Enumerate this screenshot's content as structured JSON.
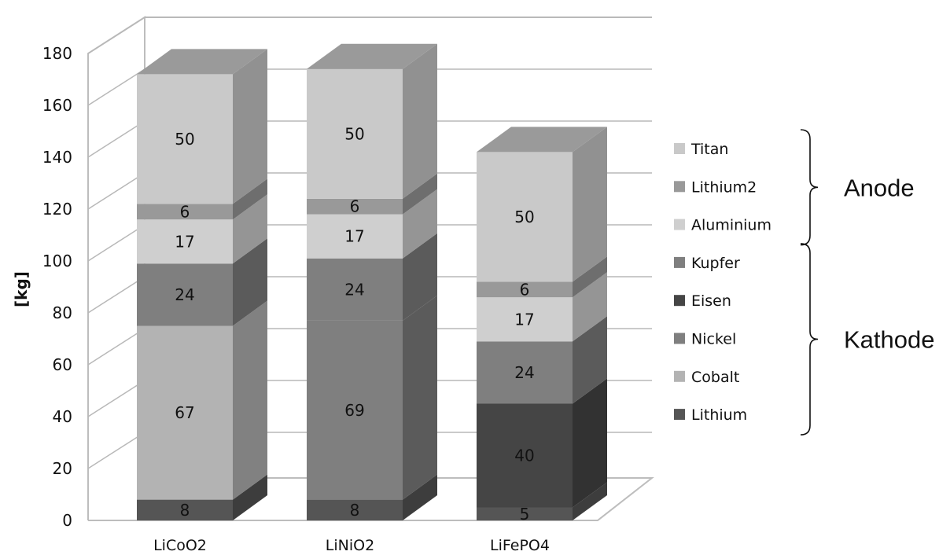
{
  "chart_data": {
    "type": "bar",
    "stacked": true,
    "three_d": true,
    "ylabel": "[kg]",
    "ylim": [
      0,
      180
    ],
    "ytick_step": 20,
    "grid": true,
    "legend_position": "right",
    "categories": [
      "LiCoO2",
      "LiNiO2",
      "LiFePO4"
    ],
    "series": [
      {
        "name": "Lithium",
        "color": "#555555",
        "values": [
          8,
          8,
          5
        ]
      },
      {
        "name": "Cobalt",
        "color": "#b3b3b3",
        "values": [
          67,
          0,
          0
        ]
      },
      {
        "name": "Nickel",
        "color": "#7f7f7f",
        "values": [
          0,
          69,
          0
        ]
      },
      {
        "name": "Eisen",
        "color": "#454545",
        "values": [
          0,
          0,
          40
        ]
      },
      {
        "name": "Kupfer",
        "color": "#7f7f7f",
        "values": [
          24,
          24,
          24
        ]
      },
      {
        "name": "Aluminium",
        "color": "#cfcfcf",
        "values": [
          17,
          17,
          17
        ]
      },
      {
        "name": "Lithium2",
        "color": "#999999",
        "values": [
          6,
          6,
          6
        ]
      },
      {
        "name": "Titan",
        "color": "#c9c9c9",
        "values": [
          50,
          50,
          50
        ]
      }
    ],
    "legend_groups": [
      {
        "label": "Anode",
        "series": [
          "Titan",
          "Lithium2",
          "Aluminium"
        ]
      },
      {
        "label": "Kathode",
        "series": [
          "Kupfer",
          "Eisen",
          "Nickel",
          "Cobalt",
          "Lithium"
        ]
      }
    ]
  }
}
